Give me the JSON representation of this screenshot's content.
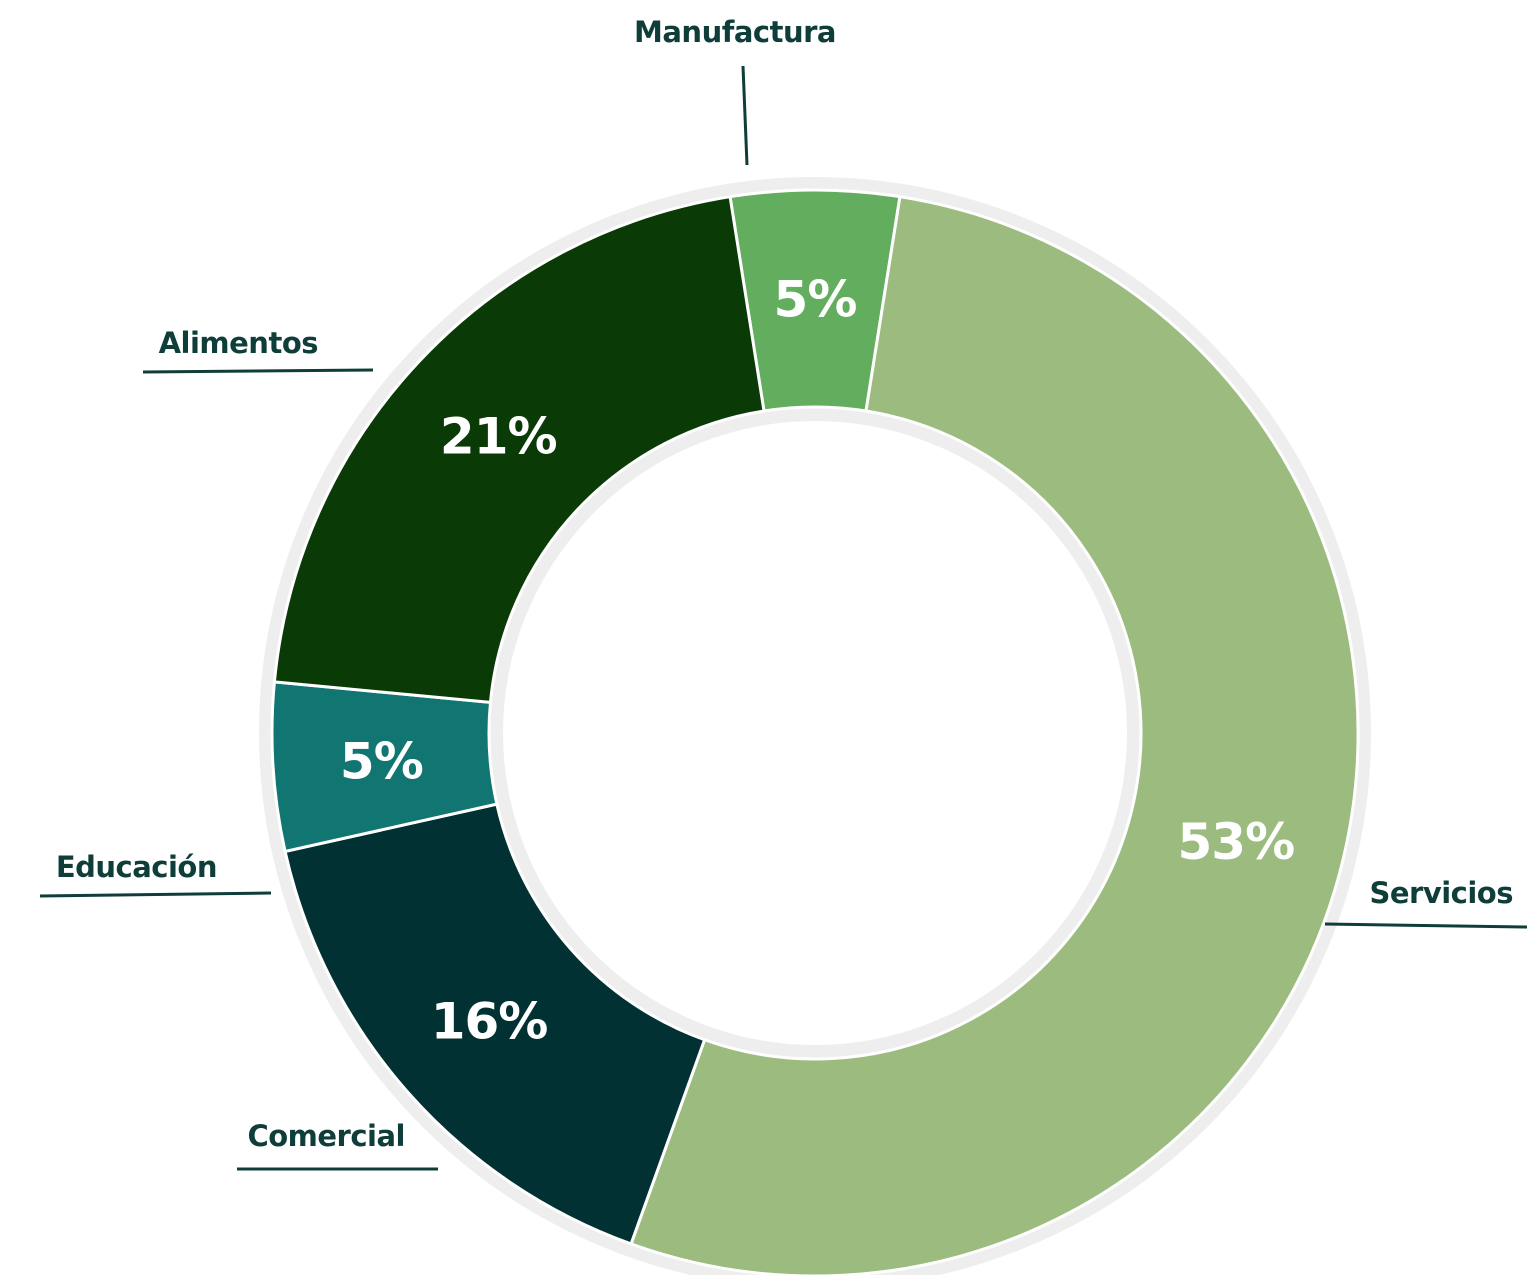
{
  "chart_data": {
    "type": "pie",
    "variant": "donut",
    "title": "",
    "slices": [
      {
        "label": "Manufactura",
        "value": 5,
        "value_label": "5%",
        "color": "#63ad5e"
      },
      {
        "label": "Servicios",
        "value": 53,
        "value_label": "53%",
        "color": "#9bbc7e"
      },
      {
        "label": "Comercial",
        "value": 16,
        "value_label": "16%",
        "color": "#023133"
      },
      {
        "label": "Educación",
        "value": 5,
        "value_label": "5%",
        "color": "#117571"
      },
      {
        "label": "Alimentos",
        "value": 21,
        "value_label": "21%",
        "color": "#0a3a05"
      }
    ],
    "ring_color": "#eeeeee",
    "label_color": "#0f3d3a",
    "value_label_color": "#ffffff",
    "legend": "none"
  }
}
